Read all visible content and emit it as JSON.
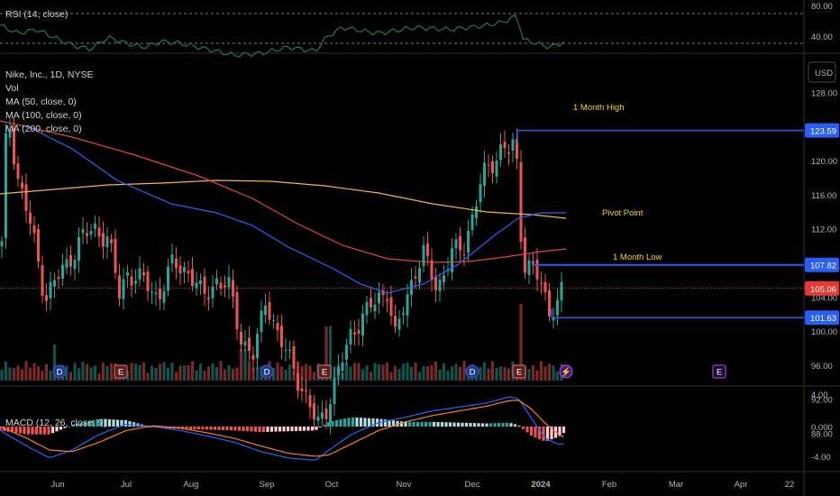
{
  "rsi": {
    "label": "RSI (14, close)",
    "ticks": [
      "80.00",
      "40.00"
    ]
  },
  "price_panel": {
    "title": "Nike, Inc., 1D, NYSE",
    "vol_label": "Vol",
    "ma_labels": [
      "MA (50, close, 0)",
      "MA (100, close, 0)",
      "MA (200, close, 0)"
    ],
    "currency_button": "USD"
  },
  "macd": {
    "label": "MACD (12, 26, close, 9)",
    "ticks": [
      "4.00",
      "0.000",
      "-4.00"
    ]
  },
  "colors": {
    "bull": "#26a69a",
    "bear": "#ef5350",
    "ma50": "#2962ff",
    "ma100": "#e0453f",
    "ma200": "#f5b34a",
    "level": "#2a5ff5",
    "annotation": "#f5d90a",
    "rsi_line": "#1f7a4a",
    "macd_line": "#2962ff",
    "signal_line": "#ff7a2a"
  },
  "chart_data": [
    {
      "type": "line",
      "title": "",
      "series": [
        {
          "name": "RSI (14, close)"
        }
      ],
      "ylim": [
        22,
        85
      ],
      "yticks": [
        80,
        40
      ],
      "reference_lines": [
        70,
        30
      ]
    },
    {
      "type": "candlestick",
      "title": "Nike, Inc., 1D, NYSE",
      "x_ticks": [
        "Jun",
        "Jul",
        "Aug",
        "Sep",
        "Oct",
        "Nov",
        "Dec",
        "2024",
        "Feb",
        "Mar",
        "Apr",
        "22"
      ],
      "y_ticks": [
        "128.00",
        "124.00",
        "120.00",
        "116.00",
        "112.00",
        "108.00",
        "104.00",
        "100.00",
        "96.00",
        "92.00",
        "88.00"
      ],
      "ylim": [
        86,
        130
      ],
      "series": [
        {
          "name": "MA (50, close, 0)"
        },
        {
          "name": "MA (100, close, 0)"
        },
        {
          "name": "MA (200, close, 0)"
        }
      ],
      "levels": [
        {
          "label": "1 Month  High",
          "value": 123.59,
          "price_label": "123.59"
        },
        {
          "label": "Pivot Point",
          "value": 107.82,
          "price_label": "107.82"
        },
        {
          "label": "1 Month Low",
          "value": 101.63,
          "price_label": "101.63"
        }
      ],
      "last_price": {
        "value": 105.06,
        "label": "105.06"
      },
      "event_markers": [
        {
          "glyph": "D",
          "kind": "dividend"
        },
        {
          "glyph": "E",
          "kind": "earnings"
        },
        {
          "glyph": "D",
          "kind": "dividend"
        },
        {
          "glyph": "E",
          "kind": "earnings"
        },
        {
          "glyph": "D",
          "kind": "dividend"
        },
        {
          "glyph": "E",
          "kind": "earnings"
        },
        {
          "glyph": "⚡",
          "kind": "split"
        },
        {
          "glyph": "E",
          "kind": "future-earnings"
        }
      ]
    },
    {
      "type": "bar",
      "title": "",
      "series": [
        {
          "name": "MACD (12, 26, close, 9)"
        }
      ],
      "ylim": [
        -6,
        5.5
      ],
      "yticks": [
        4,
        0,
        -4
      ]
    }
  ]
}
